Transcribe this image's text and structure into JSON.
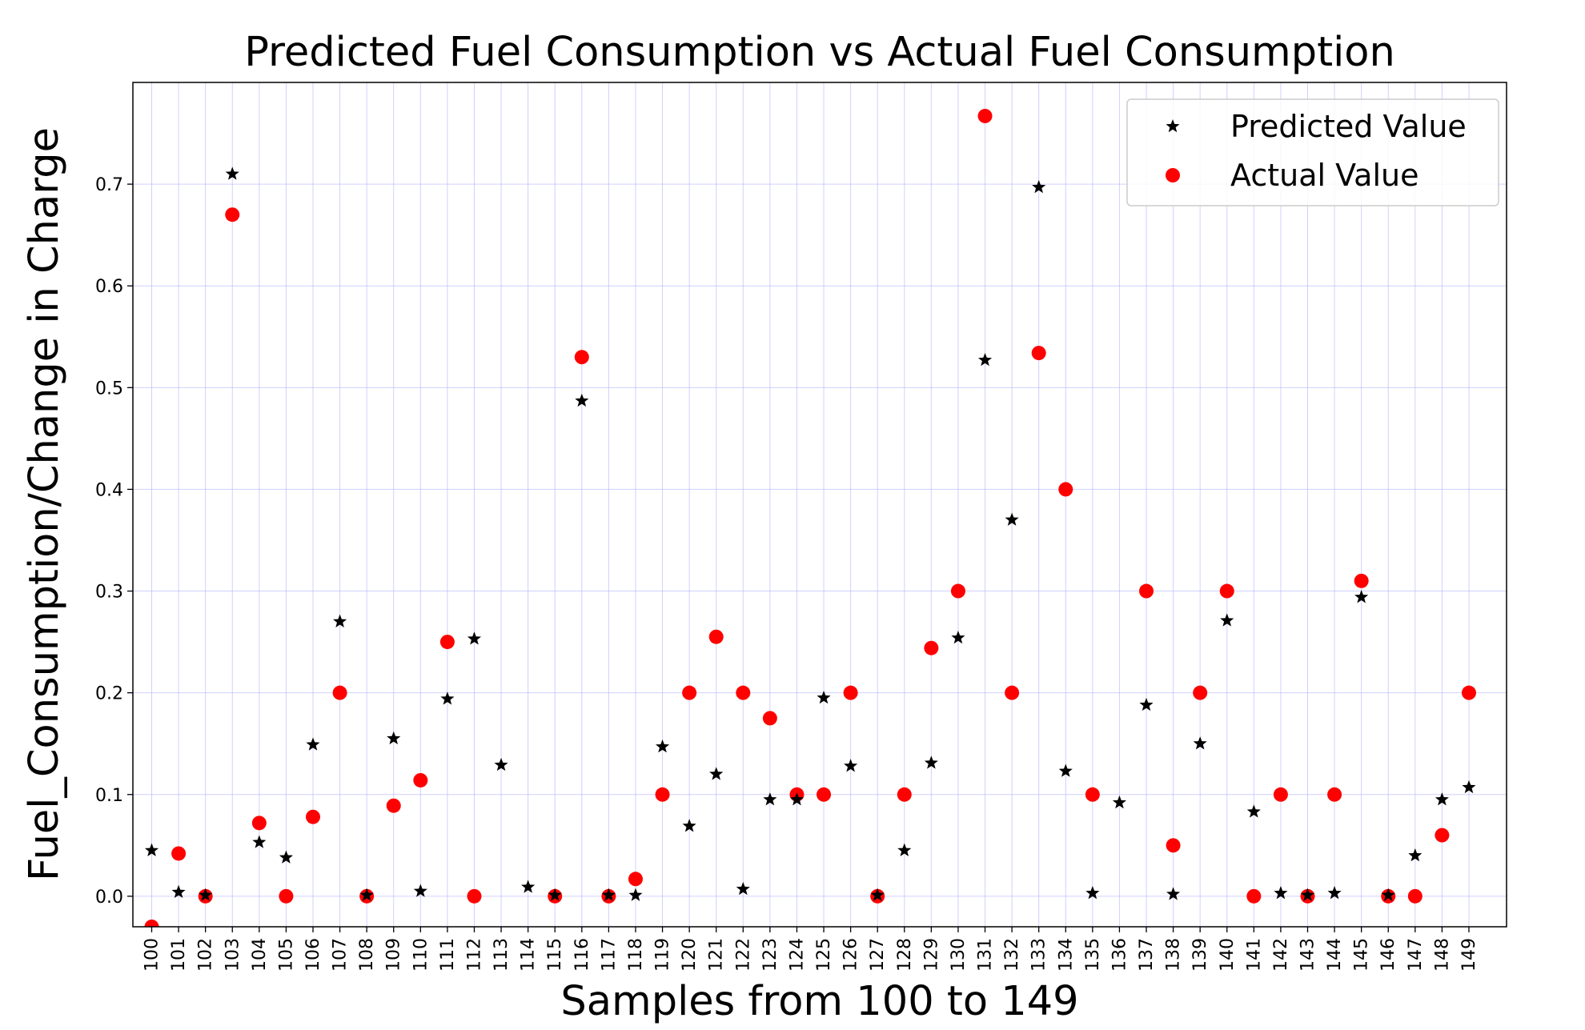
{
  "chart_data": {
    "type": "scatter",
    "title": "Predicted Fuel Consumption vs Actual Fuel Consumption",
    "xlabel": "Samples from 100 to 149",
    "ylabel": "Fuel_Consumption/Change in Charge",
    "x": [
      100,
      101,
      102,
      103,
      104,
      105,
      106,
      107,
      108,
      109,
      110,
      111,
      112,
      113,
      114,
      115,
      116,
      117,
      118,
      119,
      120,
      121,
      122,
      123,
      124,
      125,
      126,
      127,
      128,
      129,
      130,
      131,
      132,
      133,
      134,
      135,
      136,
      137,
      138,
      139,
      140,
      141,
      142,
      143,
      144,
      145,
      146,
      147,
      148,
      149
    ],
    "x_tick_labels": [
      "100",
      "101",
      "102",
      "103",
      "104",
      "105",
      "106",
      "107",
      "108",
      "109",
      "110",
      "111",
      "112",
      "113",
      "114",
      "115",
      "116",
      "117",
      "118",
      "119",
      "120",
      "121",
      "122",
      "123",
      "124",
      "125",
      "126",
      "127",
      "128",
      "129",
      "130",
      "131",
      "132",
      "133",
      "134",
      "135",
      "136",
      "137",
      "138",
      "139",
      "140",
      "141",
      "142",
      "143",
      "144",
      "145",
      "146",
      "147",
      "148",
      "149"
    ],
    "xlim": [
      99.3,
      150.4
    ],
    "ylim": [
      -0.03,
      0.8
    ],
    "y_ticks": [
      0.0,
      0.1,
      0.2,
      0.3,
      0.4,
      0.5,
      0.6,
      0.7
    ],
    "y_tick_labels": [
      "0.0",
      "0.1",
      "0.2",
      "0.3",
      "0.4",
      "0.5",
      "0.6",
      "0.7"
    ],
    "grid": true,
    "legend_position": "top-right",
    "series": [
      {
        "name": "Predicted Value",
        "marker": "star",
        "color": "#000000",
        "values": [
          0.045,
          0.004,
          0.001,
          0.71,
          0.053,
          0.038,
          0.149,
          0.27,
          0.001,
          0.155,
          0.005,
          0.194,
          0.253,
          0.129,
          0.009,
          0.001,
          0.487,
          0.001,
          0.001,
          0.147,
          0.069,
          0.12,
          0.007,
          0.095,
          0.095,
          0.195,
          0.128,
          0.001,
          0.045,
          0.131,
          0.254,
          0.527,
          0.37,
          0.697,
          0.123,
          0.003,
          0.092,
          0.188,
          0.002,
          0.15,
          0.271,
          0.083,
          0.003,
          0.001,
          0.003,
          0.294,
          0.001,
          0.04,
          0.095,
          0.107
        ]
      },
      {
        "name": "Actual Value",
        "marker": "circle",
        "color": "#ff0000",
        "values": [
          -0.03,
          0.042,
          0.0,
          0.67,
          0.072,
          0.0,
          0.078,
          0.2,
          0.0,
          0.089,
          0.114,
          0.25,
          0.0,
          null,
          null,
          0.0,
          0.53,
          0.0,
          0.017,
          0.1,
          0.2,
          0.255,
          0.2,
          0.175,
          0.1,
          0.1,
          0.2,
          0.0,
          0.1,
          0.244,
          0.3,
          0.767,
          0.2,
          0.534,
          0.4,
          0.1,
          null,
          0.3,
          0.05,
          0.2,
          0.3,
          0.0,
          0.1,
          0.0,
          0.1,
          0.31,
          0.0,
          0.0,
          0.06,
          0.2
        ]
      }
    ]
  }
}
